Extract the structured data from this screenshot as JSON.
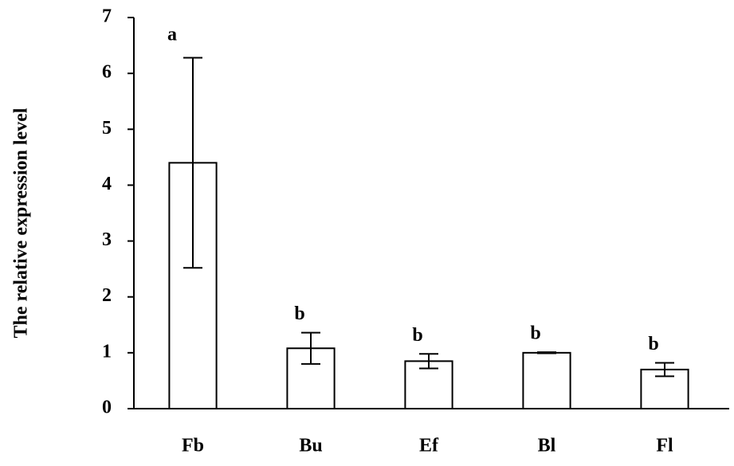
{
  "chart_data": {
    "type": "bar",
    "y_label": "The relative expression level",
    "categories": [
      "Fb",
      "Bu",
      "Ef",
      "Bl",
      "Fl"
    ],
    "values": [
      4.4,
      1.08,
      0.85,
      1.0,
      0.7
    ],
    "errors": [
      1.88,
      0.28,
      0.13,
      0.01,
      0.12
    ],
    "letters": [
      "a",
      "b",
      "b",
      "b",
      "b"
    ],
    "color": "#ffffff",
    "ylim": [
      0,
      7
    ],
    "yticks": [
      0,
      1,
      2,
      3,
      4,
      5,
      6,
      7
    ],
    "grid": false
  }
}
